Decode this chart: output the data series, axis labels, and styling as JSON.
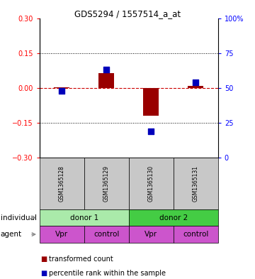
{
  "title": "GDS5294 / 1557514_a_at",
  "samples": [
    "GSM1365128",
    "GSM1365129",
    "GSM1365130",
    "GSM1365131"
  ],
  "transformed_counts": [
    0.002,
    0.065,
    -0.12,
    0.01
  ],
  "percentile_ranks": [
    48,
    63,
    19,
    54
  ],
  "ylim_left": [
    -0.3,
    0.3
  ],
  "ylim_right": [
    0,
    100
  ],
  "yticks_left": [
    -0.3,
    -0.15,
    0,
    0.15,
    0.3
  ],
  "yticks_right": [
    0,
    25,
    50,
    75,
    100
  ],
  "bar_color": "#990000",
  "dot_color": "#0000bb",
  "hline_color": "#cc0000",
  "grid_color": "#000000",
  "agent_labels": [
    "Vpr",
    "control",
    "Vpr",
    "control"
  ],
  "agent_color": "#cc55cc",
  "sample_bg": "#c8c8c8",
  "legend_red": "transformed count",
  "legend_blue": "percentile rank within the sample",
  "left_label": "individual",
  "agent_label": "agent",
  "bar_width": 0.35,
  "dot_size": 28,
  "indiv_groups": [
    {
      "label": "donor 1",
      "start": 0,
      "end": 2,
      "color": "#aaeaaa"
    },
    {
      "label": "donor 2",
      "start": 2,
      "end": 4,
      "color": "#44cc44"
    }
  ]
}
